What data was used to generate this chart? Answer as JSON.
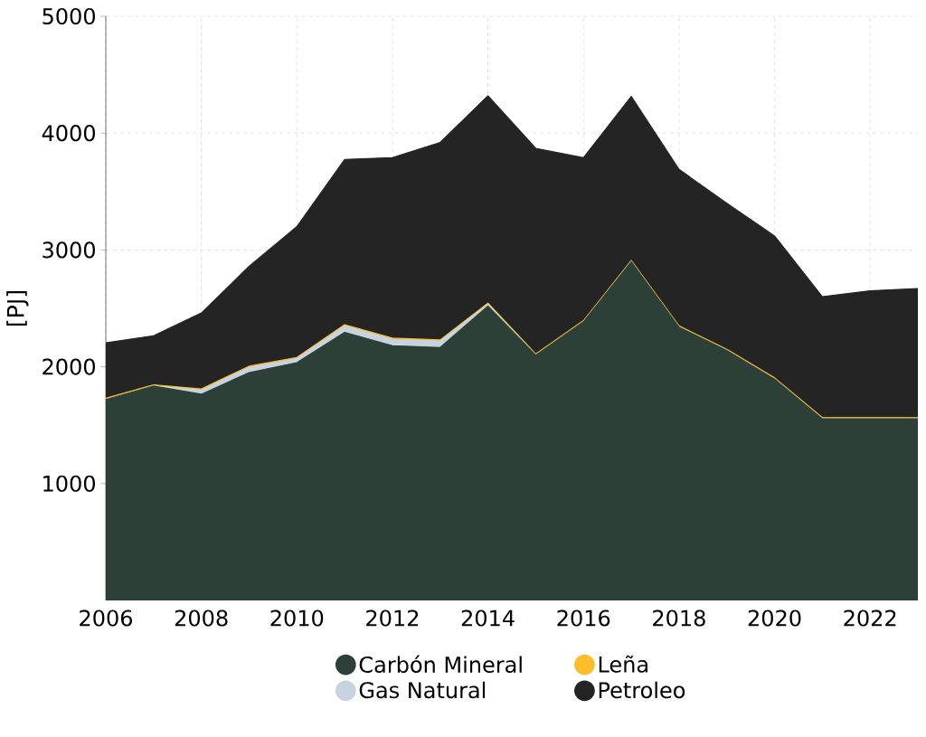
{
  "chart_data": {
    "type": "area",
    "stacked": true,
    "ylabel": "[PJ]",
    "x": [
      2006,
      2007,
      2008,
      2009,
      2010,
      2011,
      2012,
      2013,
      2014,
      2015,
      2016,
      2017,
      2018,
      2019,
      2020,
      2021,
      2022,
      2023
    ],
    "series": [
      {
        "name": "Carbón Mineral",
        "color": "#2c4038",
        "values": [
          1720,
          1835,
          1765,
          1950,
          2035,
          2295,
          2180,
          2165,
          2520,
          2100,
          2385,
          2900,
          2340,
          2140,
          1895,
          1555,
          1555,
          1555
        ]
      },
      {
        "name": "Gas Natural",
        "color": "#c8d3e0",
        "values": [
          0,
          0,
          35,
          45,
          35,
          55,
          55,
          55,
          15,
          0,
          0,
          0,
          0,
          0,
          0,
          0,
          0,
          0
        ]
      },
      {
        "name": "Leña",
        "color": "#fbbd2c",
        "values": [
          10,
          10,
          10,
          10,
          10,
          10,
          10,
          10,
          10,
          10,
          10,
          10,
          10,
          10,
          10,
          10,
          10,
          10
        ]
      },
      {
        "name": "Petroleo",
        "color": "#242424",
        "values": [
          475,
          420,
          650,
          855,
          1120,
          1415,
          1545,
          1690,
          1775,
          1760,
          1395,
          1405,
          1340,
          1250,
          1215,
          1035,
          1085,
          1105
        ]
      }
    ],
    "xlim": [
      2006,
      2023
    ],
    "ylim": [
      0,
      5000
    ],
    "xticks": [
      2006,
      2008,
      2010,
      2012,
      2014,
      2016,
      2018,
      2020,
      2022
    ],
    "yticks": [
      1000,
      2000,
      3000,
      4000,
      5000
    ],
    "grid": true,
    "legend": "bottom"
  }
}
